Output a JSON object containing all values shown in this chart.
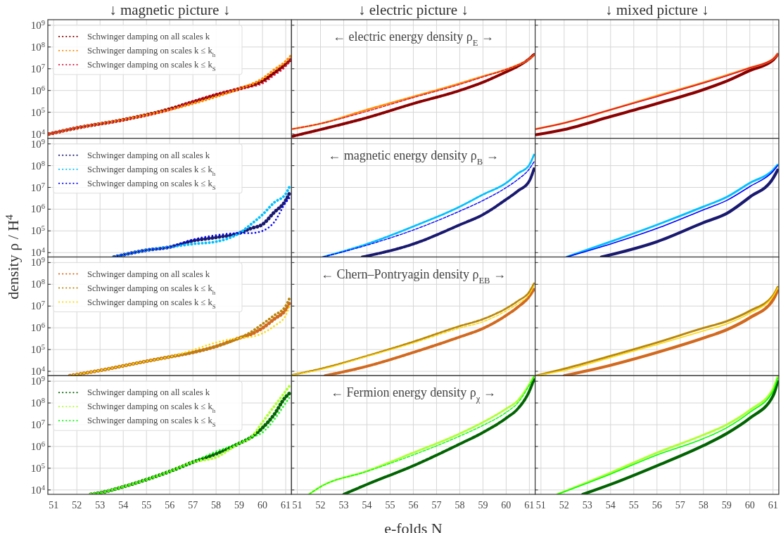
{
  "chart_data": [
    {
      "type": "line",
      "title": "↓ magnetic picture ↓",
      "xlim": [
        50.75,
        61.25
      ],
      "ylim": [
        6300,
        1800000000
      ],
      "log": true,
      "grid": true,
      "line_style": "dotted",
      "legend": "top left",
      "tick_labels": "y",
      "xticks": [
        51,
        52,
        53,
        54,
        55,
        56,
        57,
        58,
        59,
        60,
        61
      ],
      "yticks": [
        {
          "value": 10000,
          "label": "10$^{4}$"
        },
        {
          "value": 100000,
          "label": "10$^{5}$"
        },
        {
          "value": 1000000,
          "label": "10$^{6}$"
        },
        {
          "value": 10000000,
          "label": "10$^{7}$"
        },
        {
          "value": 100000000,
          "label": "10$^{8}$"
        },
        {
          "value": 1000000000,
          "label": "10$^{9}$"
        }
      ],
      "series": [
        {
          "name": "Schwinger damping on all scales k",
          "color": "#8b0000",
          "x": [
            50.8,
            52,
            54,
            56,
            57,
            58,
            59,
            60,
            60.5,
            61,
            61.2
          ],
          "values": [
            10000,
            19000,
            45000,
            140000,
            300000,
            630000,
            1200000,
            2700000,
            6300000,
            16000000,
            25000000
          ]
        },
        {
          "name": "Schwinger damping on scales k ≤ k$_{h}$",
          "color": "#ff8c00",
          "x": [
            50.8,
            52,
            54,
            56,
            57,
            58,
            59,
            60,
            60.5,
            61,
            61.2
          ],
          "values": [
            10000,
            19000,
            45000,
            130000,
            250000,
            520000,
            1200000,
            3500000,
            8900000,
            22000000,
            37000000
          ]
        },
        {
          "name": "Schwinger damping on scales k ≤ k$_{S}$",
          "color": "#dc143c",
          "x": [
            50.8,
            52,
            54,
            56,
            57,
            58,
            59,
            60,
            60.5,
            61,
            61.2
          ],
          "values": [
            10000,
            19000,
            43000,
            130000,
            320000,
            680000,
            1200000,
            2100000,
            5000000,
            13000000,
            25000000
          ]
        }
      ]
    },
    {
      "type": "line",
      "title": "↓ electric picture ↓",
      "annotations": [
        "← electric energy density ρ$_{E}$ →"
      ],
      "xlim": [
        50.75,
        61.25
      ],
      "ylim": [
        6300,
        1800000000
      ],
      "log": true,
      "grid": true,
      "line_style": "dashed",
      "tick_labels": false,
      "xticks": [
        51,
        52,
        53,
        54,
        55,
        56,
        57,
        58,
        59,
        60,
        61
      ],
      "yticks": [
        {
          "value": 10000,
          "label": null
        },
        {
          "value": 100000,
          "label": null
        },
        {
          "value": 1000000,
          "label": null
        },
        {
          "value": 10000000,
          "label": null
        },
        {
          "value": 100000000,
          "label": null
        },
        {
          "value": 1000000000,
          "label": null
        }
      ],
      "series": [
        {
          "color": "#8b0000",
          "x": [
            50.8,
            52,
            54,
            56,
            58,
            59,
            60,
            60.5,
            61,
            61.2
          ],
          "values": [
            7900,
            16000,
            56000,
            250000,
            1000000,
            2400000,
            7200000,
            13000000,
            29000000,
            45000000
          ]
        },
        {
          "color": "#ff8c00",
          "x": [
            50.8,
            52,
            54,
            56,
            58,
            59,
            60,
            60.5,
            61,
            61.2
          ],
          "values": [
            17000,
            30000,
            130000,
            520000,
            2100000,
            4500000,
            9300000,
            15000000,
            28000000,
            42000000
          ]
        },
        {
          "color": "#dc143c",
          "x": [
            50.8,
            52,
            54,
            56,
            58,
            59,
            60,
            60.5,
            61,
            61.2
          ],
          "values": [
            17000,
            30000,
            110000,
            470000,
            1900000,
            4200000,
            9300000,
            15000000,
            28000000,
            42000000
          ]
        }
      ]
    },
    {
      "type": "line",
      "title": "↓ mixed picture ↓",
      "xlim": [
        50.75,
        61.25
      ],
      "ylim": [
        6300,
        1800000000
      ],
      "log": true,
      "grid": true,
      "line_style": "solid",
      "tick_labels": false,
      "xticks": [
        51,
        52,
        53,
        54,
        55,
        56,
        57,
        58,
        59,
        60,
        61
      ],
      "yticks": [
        {
          "value": 10000,
          "label": null
        },
        {
          "value": 100000,
          "label": null
        },
        {
          "value": 1000000,
          "label": null
        },
        {
          "value": 10000000,
          "label": null
        },
        {
          "value": 100000000,
          "label": null
        },
        {
          "value": 1000000000,
          "label": null
        }
      ],
      "series": [
        {
          "color": "#8b0000",
          "x": [
            50.8,
            52,
            54,
            56,
            58,
            59,
            60,
            61,
            61.2
          ],
          "values": [
            9300,
            16000,
            63000,
            250000,
            1100000,
            2700000,
            8300000,
            25000000,
            45000000
          ]
        },
        {
          "color": "#ff8c00",
          "x": [
            50.8,
            52,
            54,
            56,
            58,
            59,
            60,
            61,
            61.2
          ],
          "values": [
            17000,
            32000,
            130000,
            560000,
            2300000,
            5000000,
            11000000,
            28000000,
            45000000
          ]
        },
        {
          "color": "#dc143c",
          "x": [
            50.8,
            52,
            54,
            56,
            58,
            59,
            60,
            61,
            61.2
          ],
          "values": [
            17000,
            32000,
            130000,
            520000,
            2200000,
            4700000,
            11000000,
            28000000,
            45000000
          ]
        }
      ]
    },
    {
      "type": "line",
      "ylabel": "density ρ / H$^{4}$",
      "xlim": [
        50.75,
        61.25
      ],
      "ylim": [
        6300,
        1800000000
      ],
      "log": true,
      "grid": true,
      "line_style": "dotted",
      "legend": "top left",
      "tick_labels": "y",
      "xticks": [
        51,
        52,
        53,
        54,
        55,
        56,
        57,
        58,
        59,
        60,
        61
      ],
      "yticks": [
        {
          "value": 10000,
          "label": "10$^{4}$"
        },
        {
          "value": 100000,
          "label": "10$^{5}$"
        },
        {
          "value": 1000000,
          "label": "10$^{6}$"
        },
        {
          "value": 10000000,
          "label": "10$^{7}$"
        },
        {
          "value": 100000000,
          "label": "10$^{8}$"
        },
        {
          "value": 1000000000,
          "label": "10$^{9}$"
        }
      ],
      "series": [
        {
          "name": "Schwinger damping on all scales k",
          "color": "#191970",
          "x": [
            53.6,
            54,
            55,
            56,
            57,
            58,
            59,
            59.5,
            60,
            60.5,
            61,
            61.15
          ],
          "values": [
            6300,
            7900,
            13000,
            18000,
            35000,
            50000,
            79000,
            130000,
            200000,
            710000,
            2500000,
            5000000
          ]
        },
        {
          "name": "Schwinger damping on scales k ≤ k$_{h}$",
          "color": "#00bfff",
          "x": [
            53.6,
            54,
            55,
            56,
            57,
            58,
            59,
            59.5,
            60,
            60.5,
            61,
            61.15
          ],
          "values": [
            6300,
            7900,
            13000,
            18000,
            25000,
            32000,
            79000,
            200000,
            560000,
            2000000,
            5000000,
            10000000
          ]
        },
        {
          "name": "Schwinger damping on scales k ≤ k$_{S}$",
          "color": "#0000ff",
          "x": [
            53.6,
            54,
            55,
            56,
            57,
            58,
            59,
            59.5,
            60,
            60.5,
            61,
            61.15
          ],
          "values": [
            6300,
            7900,
            13000,
            18000,
            40000,
            63000,
            79000,
            79000,
            100000,
            250000,
            2000000,
            3200000
          ]
        }
      ]
    },
    {
      "type": "line",
      "annotations": [
        "← magnetic energy density ρ$_{B}$ →"
      ],
      "xlim": [
        50.75,
        61.25
      ],
      "ylim": [
        6300,
        1800000000
      ],
      "log": true,
      "grid": true,
      "line_style": "dashed",
      "tick_labels": false,
      "xticks": [
        51,
        52,
        53,
        54,
        55,
        56,
        57,
        58,
        59,
        60,
        61
      ],
      "yticks": [
        {
          "value": 10000,
          "label": null
        },
        {
          "value": 100000,
          "label": null
        },
        {
          "value": 1000000,
          "label": null
        },
        {
          "value": 10000000,
          "label": null
        },
        {
          "value": 100000000,
          "label": null
        },
        {
          "value": 1000000000,
          "label": null
        }
      ],
      "series": [
        {
          "color": "#191970",
          "x": [
            53.8,
            56,
            58,
            59,
            60,
            60.5,
            61,
            61.2
          ],
          "values": [
            6300,
            25000,
            190000,
            560000,
            2800000,
            6800000,
            20000000,
            71000000
          ]
        },
        {
          "color": "#00bfff",
          "x": [
            52.1,
            54,
            56,
            58,
            59,
            60,
            60.5,
            61,
            61.2
          ],
          "values": [
            6300,
            25000,
            160000,
            1300000,
            4700000,
            16000000,
            43000000,
            110000000,
            320000000
          ]
        },
        {
          "color": "#0000ff",
          "x": [
            52.1,
            54,
            56,
            58,
            59,
            60,
            60.5,
            61,
            61.2
          ],
          "values": [
            6300,
            22000,
            110000,
            810000,
            2500000,
            9800000,
            23000000,
            71000000,
            150000000
          ]
        }
      ]
    },
    {
      "type": "line",
      "xlim": [
        50.75,
        61.25
      ],
      "ylim": [
        6300,
        1800000000
      ],
      "log": true,
      "grid": true,
      "line_style": "solid",
      "tick_labels": false,
      "xticks": [
        51,
        52,
        53,
        54,
        55,
        56,
        57,
        58,
        59,
        60,
        61
      ],
      "yticks": [
        {
          "value": 10000,
          "label": null
        },
        {
          "value": 100000,
          "label": null
        },
        {
          "value": 1000000,
          "label": null
        },
        {
          "value": 10000000,
          "label": null
        },
        {
          "value": 100000000,
          "label": null
        },
        {
          "value": 1000000000,
          "label": null
        }
      ],
      "series": [
        {
          "color": "#191970",
          "x": [
            53.6,
            56,
            58,
            59,
            60,
            61,
            61.2
          ],
          "values": [
            6300,
            32000,
            240000,
            630000,
            3600000,
            26000000,
            63000000
          ]
        },
        {
          "color": "#00bfff",
          "x": [
            52.1,
            54,
            56,
            58,
            59,
            60,
            61,
            61.2
          ],
          "values": [
            6300,
            32000,
            190000,
            1300000,
            3600000,
            16000000,
            63000000,
            110000000
          ]
        },
        {
          "color": "#0000ff",
          "x": [
            52.1,
            54,
            56,
            58,
            59,
            60,
            61,
            61.2
          ],
          "values": [
            6300,
            25000,
            130000,
            930000,
            2500000,
            11000000,
            55000000,
            100000000
          ]
        }
      ]
    },
    {
      "type": "line",
      "xlim": [
        50.75,
        61.25
      ],
      "ylim": [
        6300,
        1800000000
      ],
      "log": true,
      "grid": true,
      "line_style": "dotted",
      "legend": "top left",
      "tick_labels": "y",
      "xticks": [
        51,
        52,
        53,
        54,
        55,
        56,
        57,
        58,
        59,
        60,
        61
      ],
      "yticks": [
        {
          "value": 10000,
          "label": "10$^{4}$"
        },
        {
          "value": 100000,
          "label": "10$^{5}$"
        },
        {
          "value": 1000000,
          "label": "10$^{6}$"
        },
        {
          "value": 10000000,
          "label": "10$^{7}$"
        },
        {
          "value": 100000000,
          "label": "10$^{8}$"
        },
        {
          "value": 1000000000,
          "label": "10$^{9}$"
        }
      ],
      "series": [
        {
          "name": "Schwinger damping on all scales k",
          "color": "#d2691e",
          "x": [
            51.7,
            53,
            55,
            56,
            57,
            58,
            59,
            59.5,
            60,
            60.5,
            61,
            61.15
          ],
          "values": [
            6300,
            11000,
            29000,
            46000,
            74000,
            140000,
            340000,
            500000,
            980000,
            2500000,
            6900000,
            13000000
          ]
        },
        {
          "name": "Schwinger damping on scales k ≤ k$_{h}$",
          "color": "#b8860b",
          "x": [
            51.7,
            53,
            55,
            56,
            57,
            58,
            59,
            59.5,
            60,
            60.5,
            61,
            61.15
          ],
          "values": [
            6300,
            11000,
            29000,
            46000,
            74000,
            140000,
            340000,
            630000,
            1500000,
            3700000,
            10000000,
            21000000
          ]
        },
        {
          "name": "Schwinger damping on scales k ≤ k$_{S}$",
          "color": "#ffd700",
          "x": [
            51.7,
            53,
            55,
            56,
            57,
            58,
            59,
            59.5,
            60,
            60.5,
            61,
            61.15
          ],
          "values": [
            6300,
            11000,
            29000,
            46000,
            95000,
            210000,
            340000,
            380000,
            560000,
            1200000,
            3700000,
            8900000
          ]
        }
      ]
    },
    {
      "type": "line",
      "annotations": [
        "← Chern–Pontryagin density ρ$_{EB}$ →"
      ],
      "xlim": [
        50.75,
        61.25
      ],
      "ylim": [
        6300,
        1800000000
      ],
      "log": true,
      "grid": true,
      "line_style": "dashed",
      "tick_labels": false,
      "xticks": [
        51,
        52,
        53,
        54,
        55,
        56,
        57,
        58,
        59,
        60,
        61
      ],
      "yticks": [
        {
          "value": 10000,
          "label": null
        },
        {
          "value": 100000,
          "label": null
        },
        {
          "value": 1000000,
          "label": null
        },
        {
          "value": 10000000,
          "label": null
        },
        {
          "value": 100000000,
          "label": null
        },
        {
          "value": 1000000000,
          "label": null
        }
      ],
      "series": [
        {
          "color": "#d2691e",
          "x": [
            52.2,
            54,
            56,
            58,
            59,
            60,
            60.5,
            61,
            61.2
          ],
          "values": [
            6300,
            17000,
            74000,
            380000,
            930000,
            3700000,
            8900000,
            28000000,
            59000000
          ]
        },
        {
          "color": "#b8860b",
          "x": [
            50.8,
            52,
            54,
            56,
            58,
            59,
            60,
            60.5,
            61,
            61.2
          ],
          "values": [
            6900,
            13000,
            51000,
            230000,
            1200000,
            2500000,
            7800000,
            17000000,
            46000000,
            110000000
          ]
        },
        {
          "color": "#ffd700",
          "x": [
            50.8,
            52,
            54,
            56,
            58,
            59,
            60,
            60.5,
            61,
            61.2
          ],
          "values": [
            6900,
            12000,
            48000,
            200000,
            980000,
            1900000,
            6000000,
            13000000,
            35000000,
            85000000
          ]
        }
      ]
    },
    {
      "type": "line",
      "xlim": [
        50.75,
        61.25
      ],
      "ylim": [
        6300,
        1800000000
      ],
      "log": true,
      "grid": true,
      "line_style": "solid",
      "tick_labels": false,
      "xticks": [
        51,
        52,
        53,
        54,
        55,
        56,
        57,
        58,
        59,
        60,
        61
      ],
      "yticks": [
        {
          "value": 10000,
          "label": null
        },
        {
          "value": 100000,
          "label": null
        },
        {
          "value": 1000000,
          "label": null
        },
        {
          "value": 10000000,
          "label": null
        },
        {
          "value": 100000000,
          "label": null
        },
        {
          "value": 1000000000,
          "label": null
        }
      ],
      "series": [
        {
          "color": "#d2691e",
          "x": [
            52,
            54,
            56,
            58,
            59,
            60,
            61,
            61.2
          ],
          "values": [
            6300,
            19000,
            74000,
            340000,
            810000,
            2900000,
            19000000,
            51000000
          ]
        },
        {
          "color": "#b8860b",
          "x": [
            50.8,
            52,
            54,
            56,
            58,
            59,
            60,
            61,
            61.2
          ],
          "values": [
            6300,
            13000,
            51000,
            210000,
            980000,
            2000000,
            6000000,
            31000000,
            76000000
          ]
        },
        {
          "color": "#ffd700",
          "x": [
            50.8,
            52,
            54,
            56,
            58,
            59,
            60,
            61,
            61.2
          ],
          "values": [
            6300,
            11000,
            43000,
            170000,
            720000,
            1500000,
            4700000,
            28000000,
            69000000
          ]
        }
      ]
    },
    {
      "type": "line",
      "xlim": [
        50.75,
        61.25
      ],
      "ylim": [
        6300,
        1800000000
      ],
      "log": true,
      "grid": true,
      "line_style": "dotted",
      "legend": "top left",
      "xticks": [
        51,
        52,
        53,
        54,
        55,
        56,
        57,
        58,
        59,
        60,
        61
      ],
      "yticks": [
        {
          "value": 10000,
          "label": "10$^{4}$"
        },
        {
          "value": 100000,
          "label": "10$^{5}$"
        },
        {
          "value": 1000000,
          "label": "10$^{6}$"
        },
        {
          "value": 10000000,
          "label": "10$^{7}$"
        },
        {
          "value": 100000000,
          "label": "10$^{8}$"
        },
        {
          "value": 1000000000,
          "label": "10$^{9}$"
        }
      ],
      "series": [
        {
          "name": "Schwinger damping on all scales k",
          "color": "#006400",
          "x": [
            52.6,
            53,
            54,
            55,
            56,
            57,
            58,
            59,
            59.5,
            60,
            60.5,
            61,
            61.15
          ],
          "values": [
            6300,
            7400,
            14000,
            30000,
            71000,
            190000,
            460000,
            1400000,
            2600000,
            7200000,
            29000000,
            190000000,
            270000000
          ]
        },
        {
          "name": "Schwinger damping on scales k ≤ k$_{h}$",
          "color": "#adff2f",
          "x": [
            52.6,
            53,
            54,
            55,
            56,
            57,
            58,
            59,
            59.5,
            60,
            60.5,
            61,
            61.15
          ],
          "values": [
            6300,
            7400,
            14000,
            30000,
            71000,
            190000,
            320000,
            1400000,
            2600000,
            13000000,
            69000000,
            350000000,
            580000000
          ]
        },
        {
          "name": "Schwinger damping on scales k ≤ k$_{S}$",
          "color": "#00ff00",
          "x": [
            52.6,
            53,
            54,
            55,
            56,
            57,
            58,
            59,
            59.5,
            60,
            60.5,
            61,
            61.15
          ],
          "values": [
            6300,
            7400,
            14000,
            30000,
            71000,
            190000,
            590000,
            1400000,
            2600000,
            4400000,
            17000000,
            100000000,
            170000000
          ]
        }
      ]
    },
    {
      "type": "line",
      "xlabel": "e-folds N",
      "annotations": [
        "← Fermion energy density ρ$_{χ}$ →"
      ],
      "xlim": [
        50.75,
        61.25
      ],
      "ylim": [
        6300,
        1800000000
      ],
      "log": true,
      "grid": true,
      "line_style": "dashed",
      "tick_labels": "x",
      "xticks": [
        51,
        52,
        53,
        54,
        55,
        56,
        57,
        58,
        59,
        60,
        61
      ],
      "yticks": [
        {
          "value": 10000,
          "label": null
        },
        {
          "value": 100000,
          "label": null
        },
        {
          "value": 1000000,
          "label": null
        },
        {
          "value": 10000000,
          "label": null
        },
        {
          "value": 100000000,
          "label": null
        },
        {
          "value": 1000000000,
          "label": null
        }
      ],
      "series": [
        {
          "color": "#006400",
          "x": [
            53,
            54,
            56,
            58,
            59,
            60,
            60.5,
            61,
            61.2
          ],
          "values": [
            6300,
            18000,
            130000,
            1300000,
            4400000,
            20000000,
            54000000,
            350000000,
            1200000000
          ]
        },
        {
          "color": "#adff2f",
          "x": [
            51.5,
            52,
            54,
            56,
            58,
            59,
            60,
            60.5,
            61,
            61.2
          ],
          "values": [
            6300,
            14000,
            74000,
            520000,
            3900000,
            13000000,
            54000000,
            130000000,
            740000000,
            1700000000
          ]
        },
        {
          "color": "#00ff00",
          "x": [
            51.5,
            52,
            54,
            56,
            58,
            59,
            60,
            60.5,
            61,
            61.2
          ],
          "values": [
            6300,
            14000,
            71000,
            410000,
            3000000,
            9300000,
            37000000,
            100000000,
            660000000,
            1600000000
          ]
        }
      ]
    },
    {
      "type": "line",
      "xlim": [
        50.75,
        61.25
      ],
      "ylim": [
        6300,
        1800000000
      ],
      "log": true,
      "grid": true,
      "line_style": "solid",
      "tick_labels": "x",
      "xticks": [
        51,
        52,
        53,
        54,
        55,
        56,
        57,
        58,
        59,
        60,
        61
      ],
      "yticks": [
        {
          "value": 10000,
          "label": null
        },
        {
          "value": 100000,
          "label": null
        },
        {
          "value": 1000000,
          "label": null
        },
        {
          "value": 10000000,
          "label": null
        },
        {
          "value": 100000000,
          "label": null
        },
        {
          "value": 1000000000,
          "label": null
        }
      ],
      "series": [
        {
          "color": "#006400",
          "x": [
            52.8,
            54,
            56,
            58,
            59,
            60,
            61,
            61.2
          ],
          "values": [
            6300,
            18000,
            130000,
            1100000,
            3900000,
            20000000,
            210000000,
            950000000
          ]
        },
        {
          "color": "#adff2f",
          "x": [
            51.7,
            54,
            56,
            58,
            59,
            60,
            61,
            61.2
          ],
          "values": [
            6300,
            62000,
            520000,
            3400000,
            10000000,
            47000000,
            450000000,
            1600000000
          ]
        },
        {
          "color": "#00ff00",
          "x": [
            51.7,
            54,
            56,
            58,
            59,
            60,
            61,
            61.2
          ],
          "values": [
            6300,
            54000,
            410000,
            2300000,
            7200000,
            37000000,
            350000000,
            1400000000
          ]
        }
      ]
    }
  ]
}
